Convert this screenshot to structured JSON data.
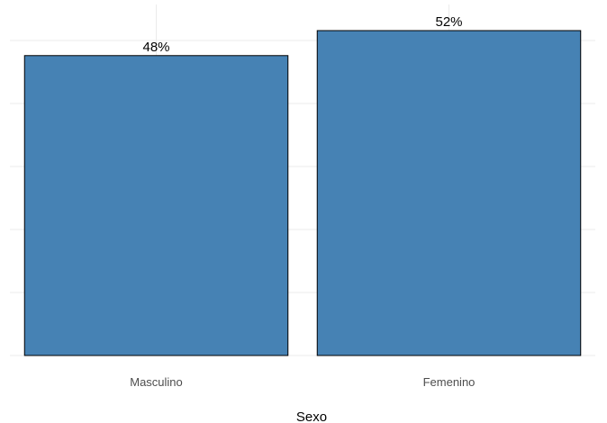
{
  "chart_data": {
    "type": "bar",
    "categories": [
      "Masculino",
      "Femenino"
    ],
    "values": [
      48,
      52
    ],
    "data_labels": [
      "48%",
      "52%"
    ],
    "xlabel": "Sexo",
    "ylabel": "",
    "ylim": [
      0,
      52
    ],
    "grid": true,
    "legend": "none",
    "colors": {
      "bar_fill": "#4682b4",
      "bar_stroke": "#000000",
      "grid": "#ebebeb"
    }
  }
}
